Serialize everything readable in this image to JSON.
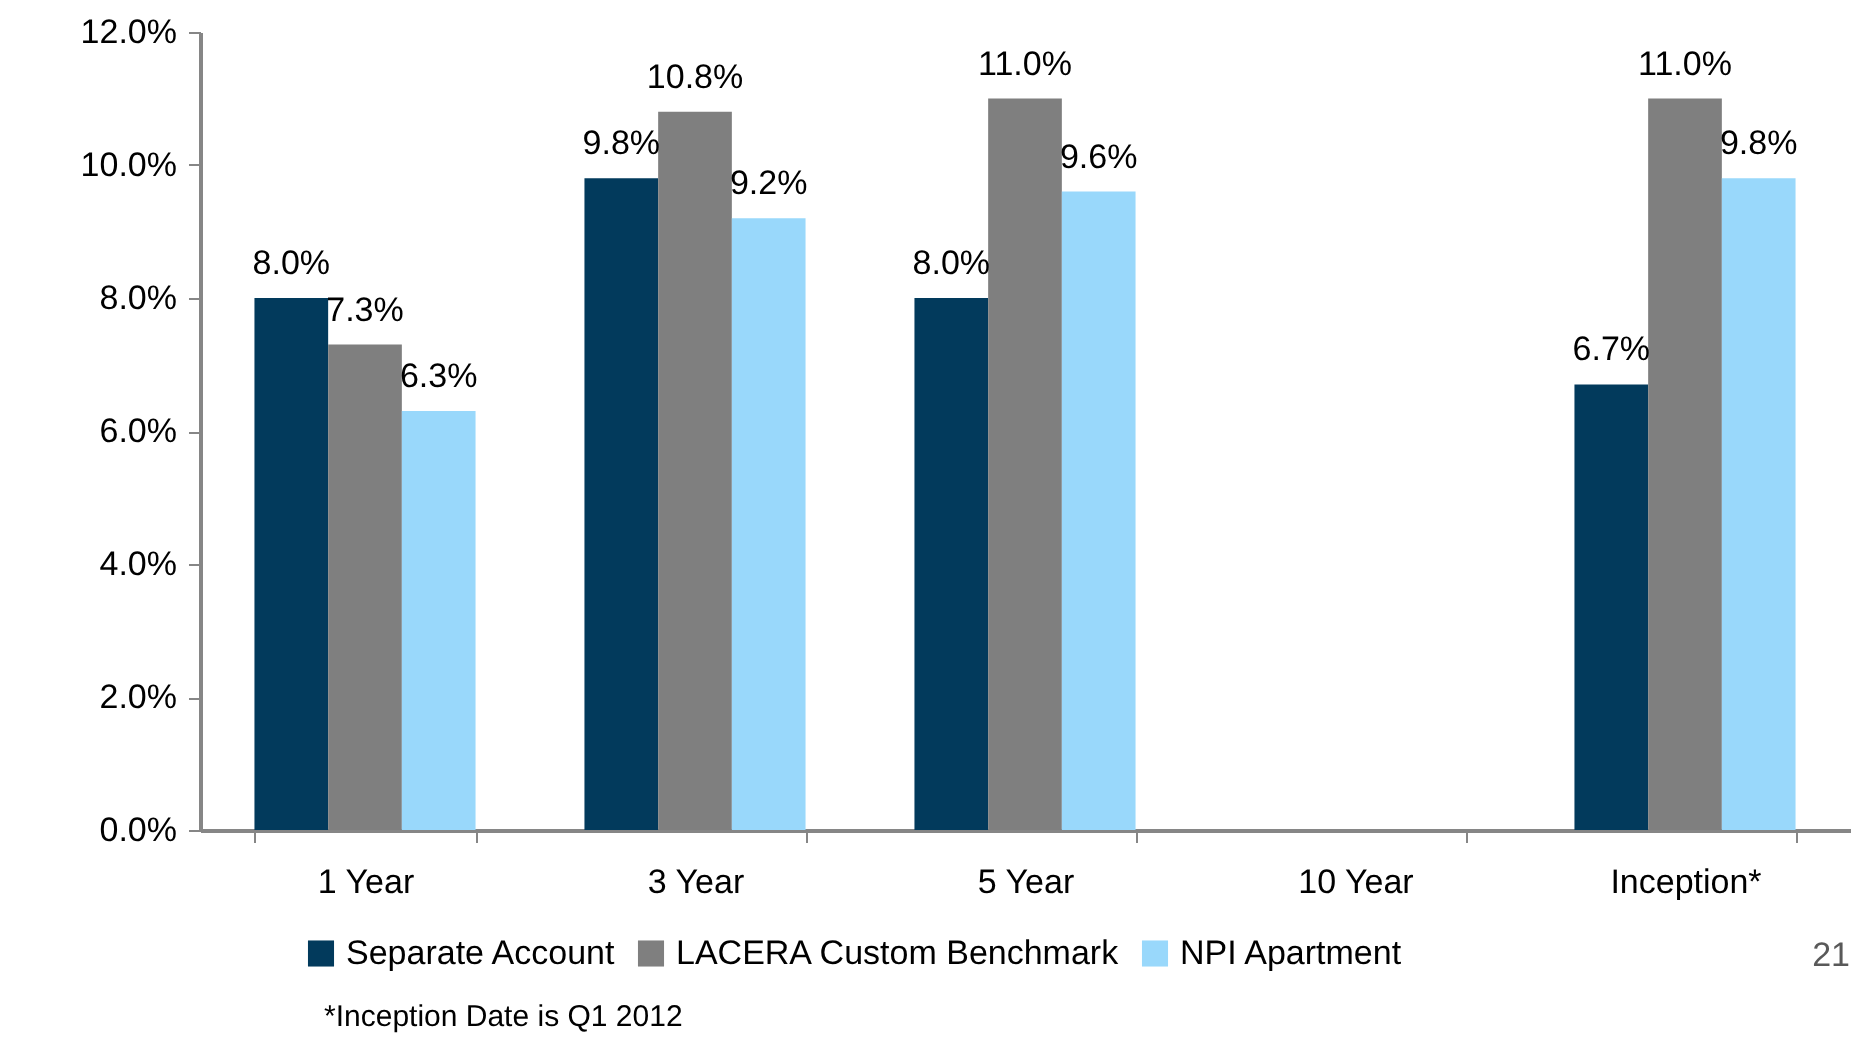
{
  "chart_data": {
    "type": "bar",
    "categories": [
      "1 Year",
      "3 Year",
      "5 Year",
      "10 Year",
      "Inception*"
    ],
    "series": [
      {
        "name": "Separate Account",
        "color": "#023a5c",
        "values": [
          8.0,
          9.8,
          8.0,
          null,
          6.7
        ],
        "value_labels": [
          "8.0%",
          "9.8%",
          "8.0%",
          null,
          "6.7%"
        ]
      },
      {
        "name": "LACERA Custom Benchmark",
        "color": "#7f7f7f",
        "values": [
          7.3,
          10.8,
          11.0,
          null,
          11.0
        ],
        "value_labels": [
          "7.3%",
          "10.8%",
          "11.0%",
          null,
          "11.0%"
        ]
      },
      {
        "name": "NPI Apartment",
        "color": "#99d8fb",
        "values": [
          6.3,
          9.2,
          9.6,
          null,
          9.8
        ],
        "value_labels": [
          "6.3%",
          "9.2%",
          "9.6%",
          null,
          "9.8%"
        ]
      }
    ],
    "ylim": [
      0,
      12
    ],
    "yticks": [
      {
        "value": 0,
        "label": "0.0%"
      },
      {
        "value": 2,
        "label": "2.0%"
      },
      {
        "value": 4,
        "label": "4.0%"
      },
      {
        "value": 6,
        "label": "6.0%"
      },
      {
        "value": 8,
        "label": "8.0%"
      },
      {
        "value": 10,
        "label": "10.0%"
      },
      {
        "value": 12,
        "label": "12.0%"
      }
    ],
    "legend": "bottom",
    "annotations": [
      "*Inception Date is Q1 2012",
      "21"
    ]
  }
}
